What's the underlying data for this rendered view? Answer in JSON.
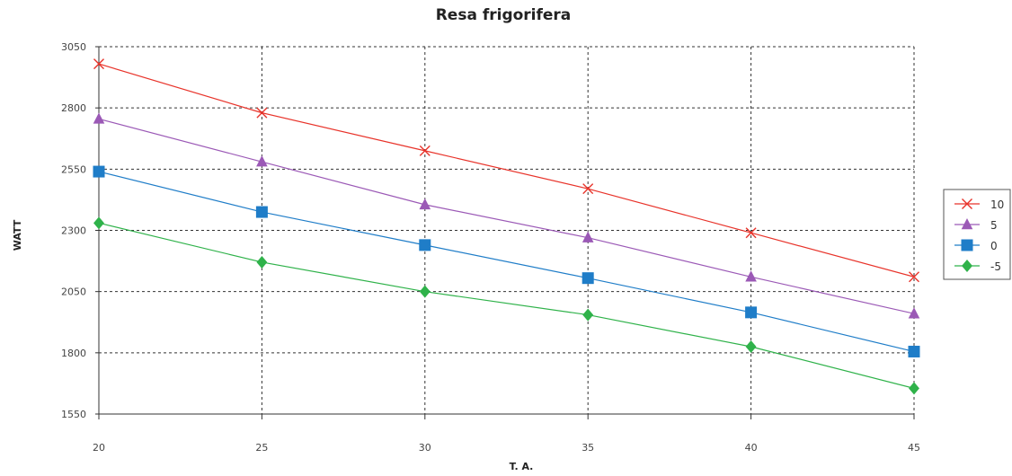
{
  "chart_data": {
    "type": "line",
    "title": "Resa frigorifera",
    "xlabel": "T. A.",
    "ylabel": "WATT",
    "x": [
      20,
      25,
      30,
      35,
      40,
      45
    ],
    "x_ticks": [
      "20",
      "25",
      "30",
      "35",
      "40",
      "45"
    ],
    "y_ticks": [
      "1550",
      "1800",
      "2050",
      "2300",
      "2550",
      "2800",
      "3050"
    ],
    "xlim": [
      20,
      45
    ],
    "ylim": [
      1550,
      3050
    ],
    "grid": true,
    "legend_position": "right",
    "series": [
      {
        "name": "10",
        "color": "#e8332a",
        "marker": "x",
        "values": [
          2980,
          2780,
          2625,
          2470,
          2290,
          2110
        ]
      },
      {
        "name": "5",
        "color": "#9b59b6",
        "marker": "triangle",
        "values": [
          2755,
          2580,
          2405,
          2270,
          2110,
          1960
        ]
      },
      {
        "name": "0",
        "color": "#1f7dc8",
        "marker": "square",
        "values": [
          2540,
          2375,
          2240,
          2105,
          1965,
          1805
        ]
      },
      {
        "name": "-5",
        "color": "#2fb24a",
        "marker": "diamond",
        "values": [
          2330,
          2170,
          2050,
          1955,
          1825,
          1655
        ]
      }
    ]
  }
}
